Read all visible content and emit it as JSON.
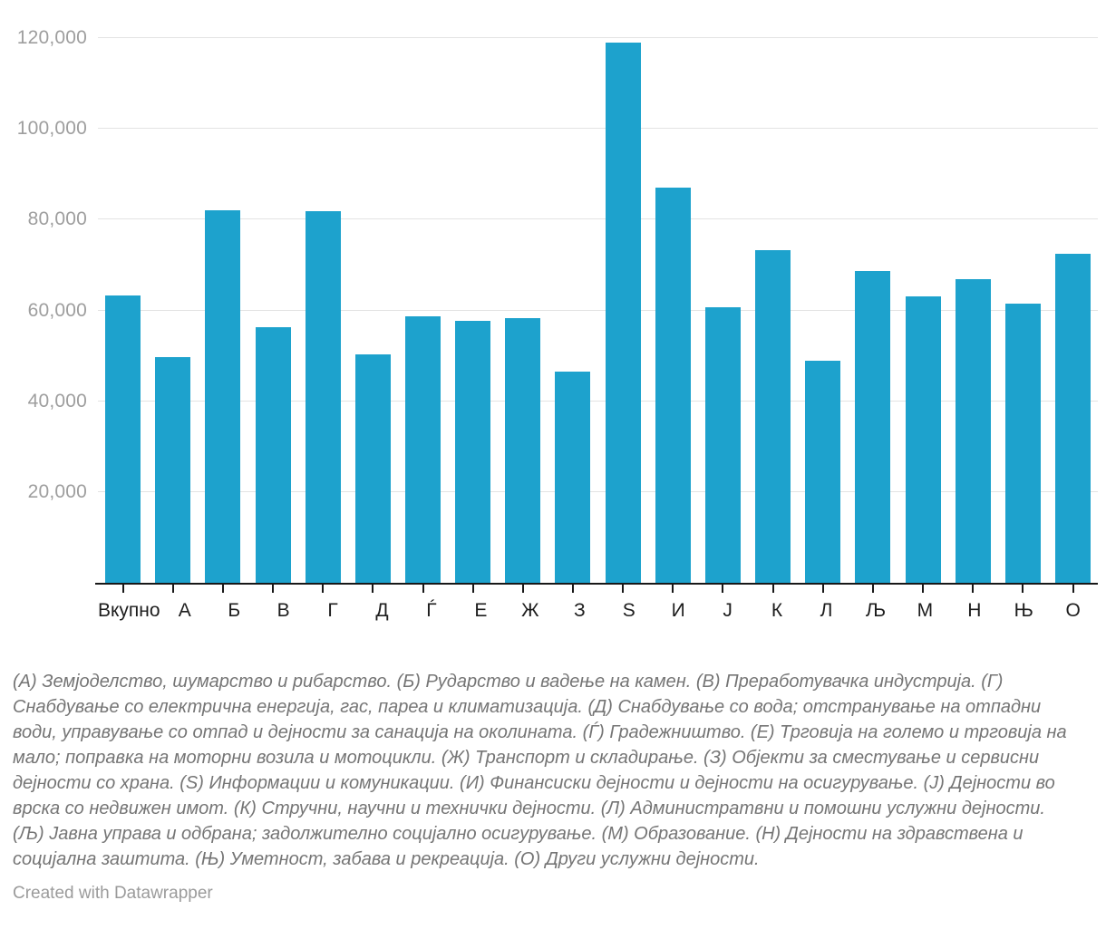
{
  "chart_data": {
    "type": "bar",
    "categories": [
      "Вкупно",
      "А",
      "Б",
      "В",
      "Г",
      "Д",
      "Ѓ",
      "Е",
      "Ж",
      "З",
      "Ѕ",
      "И",
      "Ј",
      "К",
      "Л",
      "Љ",
      "М",
      "Н",
      "Њ",
      "О"
    ],
    "values": [
      63200,
      49700,
      82100,
      56400,
      81900,
      50400,
      58700,
      57700,
      58400,
      46500,
      119000,
      87000,
      60800,
      73300,
      49000,
      68700,
      63000,
      66800,
      61500,
      72400
    ],
    "title": "",
    "xlabel": "",
    "ylabel": "",
    "ylim": [
      0,
      120000
    ],
    "y_ticks": [
      20000,
      40000,
      60000,
      80000,
      100000,
      120000
    ],
    "y_tick_labels": [
      "20,000",
      "40,000",
      "60,000",
      "80,000",
      "100,000",
      "120,000"
    ],
    "grid": "horizontal",
    "legend_position": "none",
    "bar_color": "#1da2cd"
  },
  "footnote": {
    "text": "(А) Земјоделство, шумарство и рибарство. (Б) Рударство и вадење на камен. (В) Преработувачка индустрија. (Г) Снабдување со електрична енергија, гас, пареа и климатизација. (Д) Снабдување со вода; отстранување на отпадни води, управување со отпад и дејности за санација на околината. (Ѓ) Градежништво. (Е) Трговија на големо и трговија на мало; поправка на моторни возила и мотоцикли. (Ж) Транспорт и складирање. (З) Објекти за сместување и сервисни дејности со храна. (Ѕ) Информации и комуникации. (И) Финансиски дејности и дејности на осигурување. (Ј) Дејности во врска со недвижен имот. (К) Стручни, научни и технички дејности. (Л) Администратвни и помошни услужни дејности. (Љ) Јавна управа и одбрана; задолжително социјално осигурување. (М) Образование. (Н) Дејности на здравствена и социјална заштита. (Њ) Уметност, забава и рекреација. (О) Други услужни дејности."
  },
  "credit": {
    "text": "Created with Datawrapper"
  }
}
